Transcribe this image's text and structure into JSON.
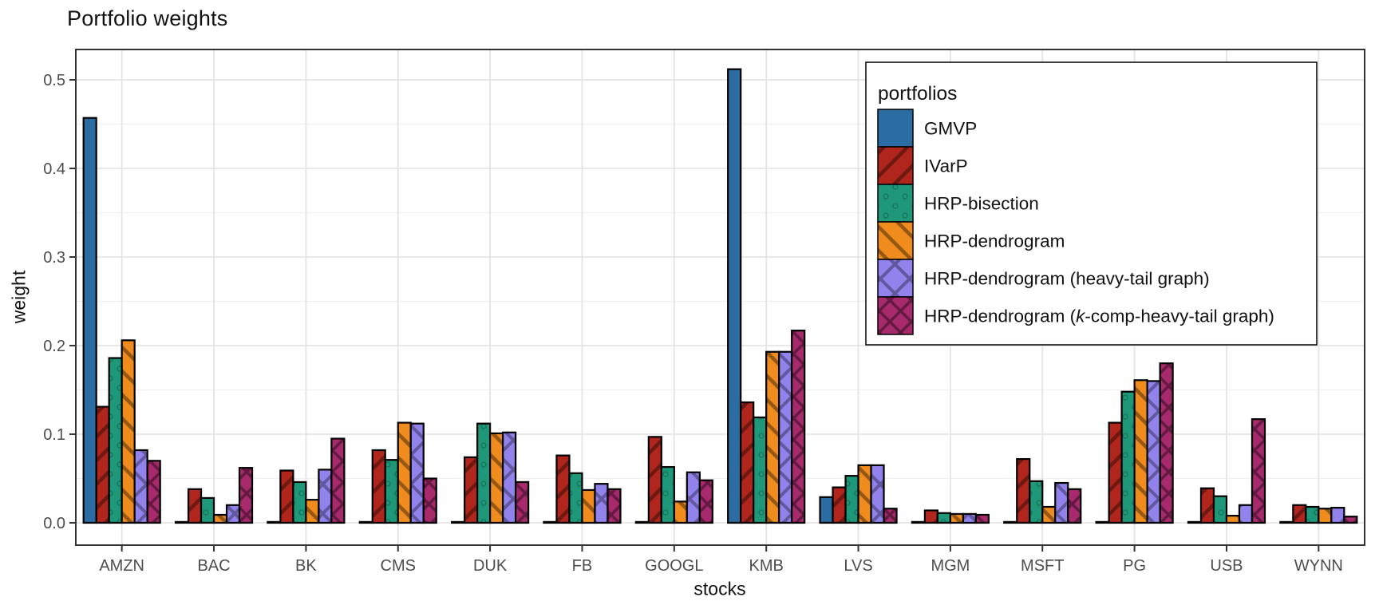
{
  "title": "Portfolio weights",
  "axes": {
    "x": {
      "label": "stocks",
      "ticks": [
        "AMZN",
        "BAC",
        "BK",
        "CMS",
        "DUK",
        "FB",
        "GOOGL",
        "KMB",
        "LVS",
        "MGM",
        "MSFT",
        "PG",
        "USB",
        "WYNN"
      ]
    },
    "y": {
      "label": "weight",
      "ticks": [
        "0.0",
        "0.1",
        "0.2",
        "0.3",
        "0.4",
        "0.5"
      ],
      "tick_values": [
        0.0,
        0.1,
        0.2,
        0.3,
        0.4,
        0.5
      ],
      "minor_tick_values": [
        0.05,
        0.15,
        0.25,
        0.35,
        0.45
      ]
    }
  },
  "legend": {
    "title": "portfolios",
    "items": [
      {
        "label": "GMVP",
        "segments": [
          {
            "text": "GMVP",
            "italic": false
          }
        ],
        "pattern": "solid",
        "color": "#2B6CA3"
      },
      {
        "label": "IVarP",
        "segments": [
          {
            "text": "IVarP",
            "italic": false
          }
        ],
        "pattern": "stripe-up",
        "color": "#B0261C"
      },
      {
        "label": "HRP-bisection",
        "segments": [
          {
            "text": "HRP-bisection",
            "italic": false
          }
        ],
        "pattern": "circles",
        "color": "#1E9878"
      },
      {
        "label": "HRP-dendrogram",
        "segments": [
          {
            "text": "HRP-dendrogram",
            "italic": false
          }
        ],
        "pattern": "stripe-down",
        "color": "#F08C1E"
      },
      {
        "label": "HRP-dendrogram (heavy-tail graph)",
        "segments": [
          {
            "text": "HRP-dendrogram (heavy-tail graph)",
            "italic": false
          }
        ],
        "pattern": "crosshatch",
        "color": "#9182EC"
      },
      {
        "label": "HRP-dendrogram (k-comp-heavy-tail graph)",
        "segments": [
          {
            "text": "HRP-dendrogram (",
            "italic": false
          },
          {
            "text": "k",
            "italic": true
          },
          {
            "text": "-comp-heavy-tail graph)",
            "italic": false
          }
        ],
        "pattern": "crosshatch-dense",
        "color": "#A62A6C"
      }
    ]
  },
  "style": {
    "bar_stroke": "#000000",
    "panel_border": "#333333",
    "grid_major": "#e4e4e4",
    "grid_minor": "#f0f0f0",
    "tick_label_color": "#4d4d4d",
    "axis_title_color": "#111111"
  },
  "chart_data": {
    "type": "bar",
    "title": "Portfolio weights",
    "xlabel": "stocks",
    "ylabel": "weight",
    "ylim": [
      0,
      0.52
    ],
    "grid": true,
    "legend_position": "top-right-inside",
    "categories": [
      "AMZN",
      "BAC",
      "BK",
      "CMS",
      "DUK",
      "FB",
      "GOOGL",
      "KMB",
      "LVS",
      "MGM",
      "MSFT",
      "PG",
      "USB",
      "WYNN"
    ],
    "series": [
      {
        "name": "GMVP",
        "color": "#2B6CA3",
        "pattern": "solid",
        "values": [
          0.457,
          0.001,
          0.001,
          0.001,
          0.001,
          0.001,
          0.001,
          0.512,
          0.029,
          0.001,
          0.001,
          0.001,
          0.001,
          0.001
        ]
      },
      {
        "name": "IVarP",
        "color": "#B0261C",
        "pattern": "stripe-up",
        "values": [
          0.131,
          0.038,
          0.059,
          0.082,
          0.074,
          0.076,
          0.097,
          0.136,
          0.04,
          0.014,
          0.072,
          0.113,
          0.039,
          0.02
        ]
      },
      {
        "name": "HRP-bisection",
        "color": "#1E9878",
        "pattern": "circles",
        "values": [
          0.186,
          0.028,
          0.046,
          0.071,
          0.112,
          0.056,
          0.063,
          0.119,
          0.053,
          0.011,
          0.047,
          0.148,
          0.03,
          0.018
        ]
      },
      {
        "name": "HRP-dendrogram",
        "color": "#F08C1E",
        "pattern": "stripe-down",
        "values": [
          0.206,
          0.009,
          0.026,
          0.113,
          0.101,
          0.037,
          0.024,
          0.193,
          0.065,
          0.01,
          0.018,
          0.161,
          0.008,
          0.016
        ]
      },
      {
        "name": "HRP-dendrogram (heavy-tail graph)",
        "color": "#9182EC",
        "pattern": "crosshatch",
        "values": [
          0.082,
          0.02,
          0.06,
          0.112,
          0.102,
          0.044,
          0.057,
          0.193,
          0.065,
          0.01,
          0.045,
          0.16,
          0.02,
          0.017
        ]
      },
      {
        "name": "HRP-dendrogram (k-comp-heavy-tail graph)",
        "color": "#A62A6C",
        "pattern": "crosshatch-dense",
        "values": [
          0.07,
          0.062,
          0.095,
          0.05,
          0.046,
          0.038,
          0.048,
          0.217,
          0.016,
          0.009,
          0.038,
          0.18,
          0.117,
          0.007
        ]
      }
    ]
  }
}
